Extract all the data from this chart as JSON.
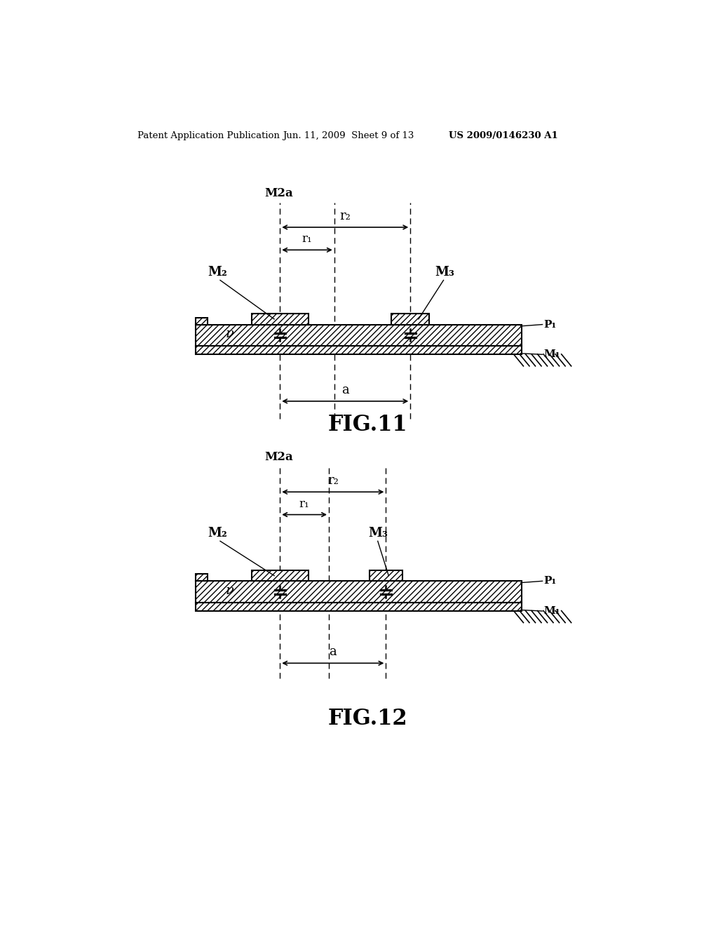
{
  "bg_color": "#ffffff",
  "header_left": "Patent Application Publication",
  "header_mid": "Jun. 11, 2009  Sheet 9 of 13",
  "header_right": "US 2009/0146230 A1",
  "fig11_caption": "FIG.11",
  "fig12_caption": "FIG.12",
  "line_color": "#000000"
}
